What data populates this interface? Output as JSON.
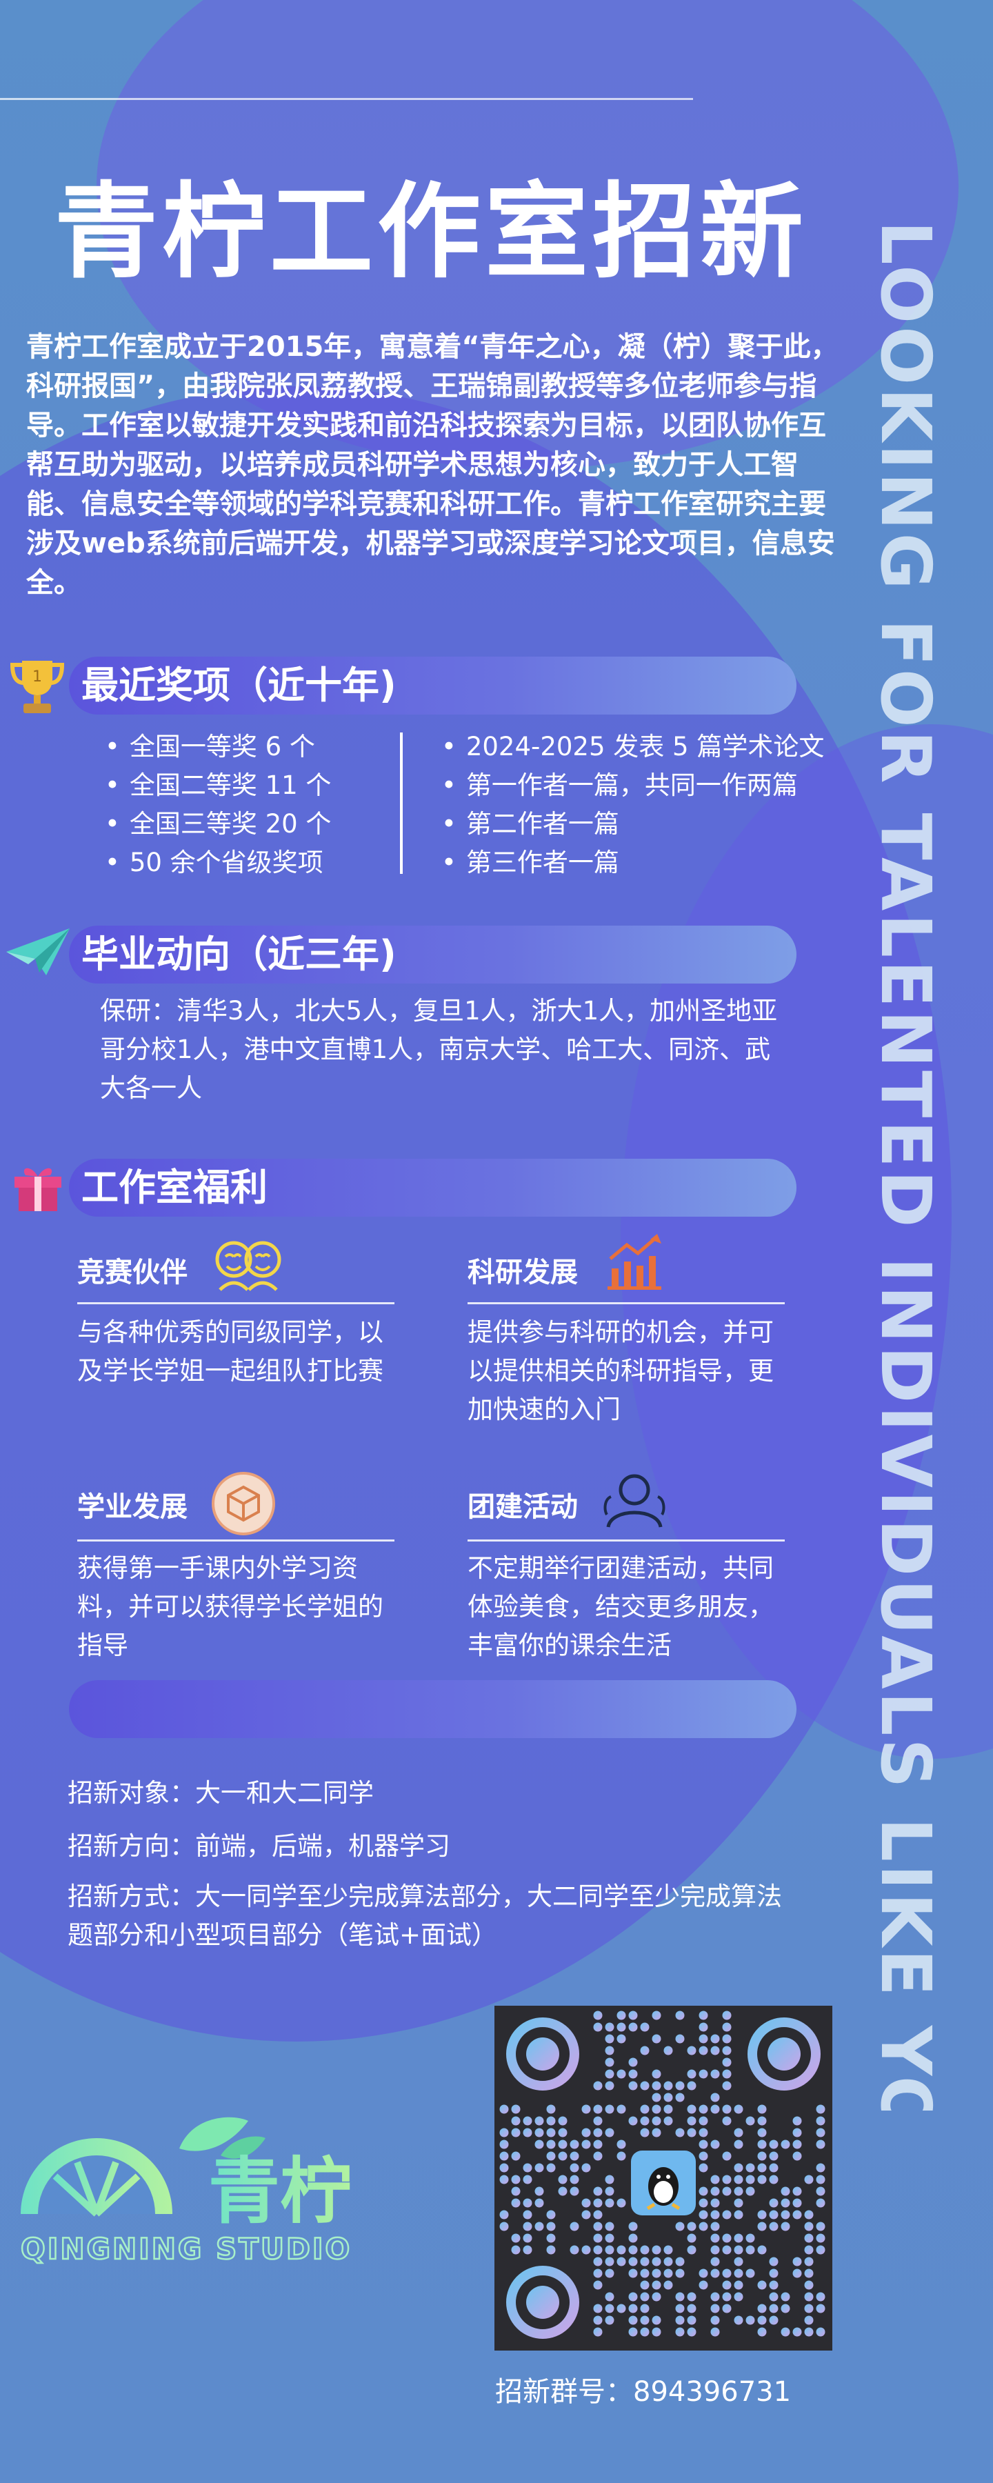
{
  "title": "青柠工作室招新",
  "intro": "青柠工作室成立于2015年，寓意着“青年之心，凝（柠）聚于此，科研报国”，由我院张凤荔教授、王瑞锦副教授等多位老师参与指导。工作室以敏捷开发实践和前沿科技探索为目标，以团队协作互帮互助为驱动，以培养成员科研学术思想为核心，致力于人工智能、信息安全等领域的学科竞赛和科研工作。青柠工作室研究主要涉及web系统前后端开发，机器学习或深度学习论文项目，信息安全。",
  "vertical_text": "LOOKING FOR TALENTED INDIVIDUALS LIKE YOU",
  "awards": {
    "title": "最近奖项（近十年)",
    "left": [
      "全国一等奖 6 个",
      "全国二等奖 11 个",
      "全国三等奖 20 个",
      "50 余个省级奖项"
    ],
    "right": [
      "2024-2025 发表 5 篇学术论文",
      "第一作者一篇，共同一作两篇",
      "第二作者一篇",
      "第三作者一篇"
    ]
  },
  "graduation": {
    "title": "毕业动向（近三年)",
    "text": "保研：清华3人，北大5人，复旦1人，浙大1人，加州圣地亚哥分校1人，港中文直博1人，南京大学、哈工大、同济、武大各一人"
  },
  "benefits": {
    "title": "工作室福利",
    "items": [
      {
        "heading": "竞赛伙伴",
        "text": "与各种优秀的同级同学，以及学长学姐一起组队打比赛"
      },
      {
        "heading": "科研发展",
        "text": "提供参与科研的机会，并可以提供相关的科研指导，更加快速的入门"
      },
      {
        "heading": "学业发展",
        "text": "获得第一手课内外学习资料，并可以获得学长学姐的指导"
      },
      {
        "heading": "团建活动",
        "text": "不定期举行团建活动，共同体验美食，结交更多朋友，丰富你的课余生活"
      }
    ]
  },
  "recruit": {
    "target": "招新对象：大一和大二同学",
    "direction": "招新方向：前端，后端，机器学习",
    "method": "招新方式：大一同学至少完成算法部分，大二同学至少完成算法题部分和小型项目部分（笔试+面试）"
  },
  "logo": {
    "cn": "青柠",
    "en": "QINGNING STUDIO"
  },
  "group_label": "招新群号：894396731",
  "colors": {
    "background": "#5a8fcb",
    "bar": "#5b55dc",
    "accent_logo": "#6ee0c8"
  },
  "icons": [
    "trophy-icon",
    "paper-plane-icon",
    "gift-icon",
    "friends-icon",
    "growth-chart-icon",
    "cube-icon",
    "team-icon",
    "qq-penguin-icon"
  ]
}
